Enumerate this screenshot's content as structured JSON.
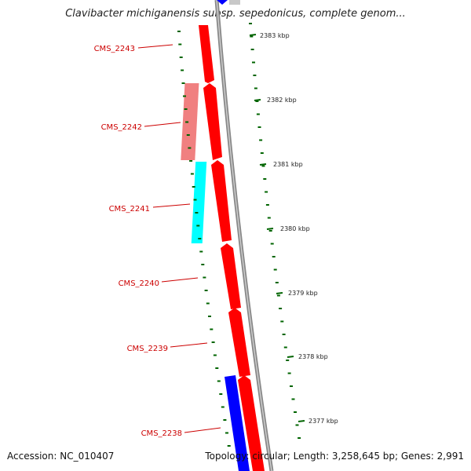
{
  "title": "Clavibacter michiganensis subsp. sepedonicus, complete genom...",
  "accession": "Accession: NC_010407",
  "summary": "Topology: circular; Length: 3,258,645 bp; Genes: 2,991",
  "gene_labels": [
    "CMS_2243",
    "CMS_2242",
    "CMS_2241",
    "CMS_2240",
    "CMS_2239",
    "CMS_2238"
  ],
  "ruler_labels": [
    "2383 kbp",
    "2382 kbp",
    "2381 kbp",
    "2380 kbp",
    "2379 kbp",
    "2378 kbp",
    "2377 kbp"
  ],
  "colors": {
    "forward_gene": "#ff0000",
    "reverse_gene": "#0000ff",
    "pseudo_pink": "#f08080",
    "cyan_feature": "#00ffff",
    "tick_green": "#006400",
    "label_red": "#cc0000",
    "backbone": "#888888"
  }
}
